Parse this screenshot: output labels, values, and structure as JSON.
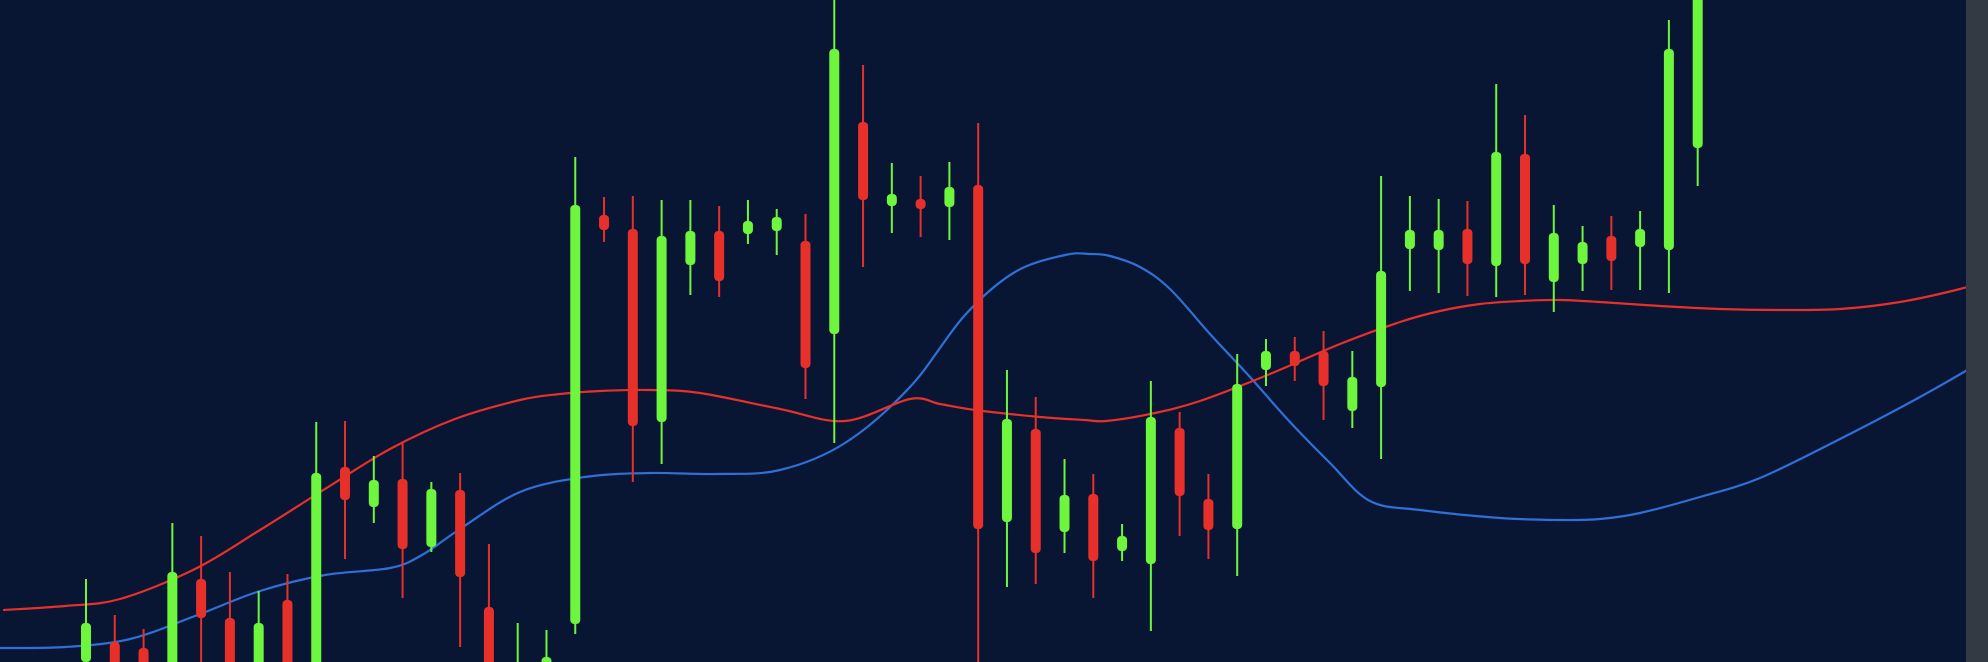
{
  "chart_data": {
    "type": "candlestick",
    "title": "",
    "xlabel": "",
    "ylabel": "",
    "ylim": [
      0,
      662
    ],
    "grid": false,
    "legend": "none",
    "colors": {
      "background": "#081634",
      "up": "#6ef53d",
      "down": "#e8302a",
      "ma_fast": "#2f6fd6",
      "ma_slow": "#e8302a",
      "edge": "#333a43"
    },
    "candles": [
      {
        "dir": "up",
        "open": 39,
        "close": 0,
        "high": 83,
        "low": -10
      },
      {
        "dir": "down",
        "open": 20,
        "close": -10,
        "high": 47,
        "low": -10
      },
      {
        "dir": "down",
        "open": 14,
        "close": -10,
        "high": 33,
        "low": -10
      },
      {
        "dir": "up",
        "open": -10,
        "close": 90,
        "high": 139,
        "low": -10
      },
      {
        "dir": "down",
        "open": 83,
        "close": 44,
        "high": 126,
        "low": -10
      },
      {
        "dir": "down",
        "open": 44,
        "close": -10,
        "high": 90,
        "low": -10
      },
      {
        "dir": "up",
        "open": -10,
        "close": 39,
        "high": 71,
        "low": -10
      },
      {
        "dir": "down",
        "open": 62,
        "close": -10,
        "high": 88,
        "low": -10
      },
      {
        "dir": "up",
        "open": -10,
        "close": 189,
        "high": 240,
        "low": -10
      },
      {
        "dir": "down",
        "open": 195,
        "close": 162,
        "high": 241,
        "low": 103
      },
      {
        "dir": "up",
        "open": 155,
        "close": 182,
        "high": 206,
        "low": 139
      },
      {
        "dir": "down",
        "open": 183,
        "close": 113,
        "high": 220,
        "low": 64
      },
      {
        "dir": "up",
        "open": 115,
        "close": 173,
        "high": 180,
        "low": 110
      },
      {
        "dir": "down",
        "open": 172,
        "close": 85,
        "high": 189,
        "low": 15
      },
      {
        "dir": "down",
        "open": 55,
        "close": -10,
        "high": 118,
        "low": -10
      },
      {
        "dir": "up",
        "open": -10,
        "close": 0,
        "high": 39,
        "low": -10
      },
      {
        "dir": "up",
        "open": -10,
        "close": 5,
        "high": 32,
        "low": -10
      },
      {
        "dir": "up",
        "open": 38,
        "close": 457,
        "high": 505,
        "low": 28
      },
      {
        "dir": "down",
        "open": 447,
        "close": 432,
        "high": 465,
        "low": 420
      },
      {
        "dir": "down",
        "open": 433,
        "close": 236,
        "high": 466,
        "low": 180
      },
      {
        "dir": "up",
        "open": 240,
        "close": 426,
        "high": 462,
        "low": 198
      },
      {
        "dir": "up",
        "open": 397,
        "close": 431,
        "high": 462,
        "low": 367
      },
      {
        "dir": "down",
        "open": 431,
        "close": 381,
        "high": 456,
        "low": 365
      },
      {
        "dir": "up",
        "open": 428,
        "close": 441,
        "high": 462,
        "low": 418
      },
      {
        "dir": "up",
        "open": 431,
        "close": 445,
        "high": 453,
        "low": 407
      },
      {
        "dir": "down",
        "open": 421,
        "close": 294,
        "high": 448,
        "low": 263
      },
      {
        "dir": "up",
        "open": 328,
        "close": 613,
        "high": 672,
        "low": 219
      },
      {
        "dir": "down",
        "open": 540,
        "close": 462,
        "high": 597,
        "low": 395
      },
      {
        "dir": "up",
        "open": 468,
        "close": 456,
        "high": 499,
        "low": 429
      },
      {
        "dir": "down",
        "open": 463,
        "close": 453,
        "high": 486,
        "low": 425
      },
      {
        "dir": "up",
        "open": 455,
        "close": 475,
        "high": 500,
        "low": 422
      },
      {
        "dir": "down",
        "open": 477,
        "close": 133,
        "high": 539,
        "low": 0
      },
      {
        "dir": "up",
        "open": 140,
        "close": 243,
        "high": 292,
        "low": 75
      },
      {
        "dir": "down",
        "open": 233,
        "close": 109,
        "high": 265,
        "low": 78
      },
      {
        "dir": "up",
        "open": 130,
        "close": 167,
        "high": 203,
        "low": 109
      },
      {
        "dir": "down",
        "open": 168,
        "close": 101,
        "high": 188,
        "low": 64
      },
      {
        "dir": "up",
        "open": 111,
        "close": 126,
        "high": 138,
        "low": 101
      },
      {
        "dir": "up",
        "open": 98,
        "close": 245,
        "high": 281,
        "low": 31
      },
      {
        "dir": "down",
        "open": 234,
        "close": 166,
        "high": 250,
        "low": 126
      },
      {
        "dir": "down",
        "open": 163,
        "close": 132,
        "high": 188,
        "low": 103
      },
      {
        "dir": "up",
        "open": 133,
        "close": 278,
        "high": 308,
        "low": 86
      },
      {
        "dir": "up",
        "open": 292,
        "close": 311,
        "high": 323,
        "low": 276
      },
      {
        "dir": "down",
        "open": 311,
        "close": 296,
        "high": 325,
        "low": 281
      },
      {
        "dir": "down",
        "open": 311,
        "close": 276,
        "high": 331,
        "low": 242
      },
      {
        "dir": "up",
        "open": 251,
        "close": 285,
        "high": 311,
        "low": 234
      },
      {
        "dir": "up",
        "open": 391,
        "close": 275,
        "high": 486,
        "low": 203
      },
      {
        "dir": "up",
        "open": 413,
        "close": 432,
        "high": 466,
        "low": 371
      },
      {
        "dir": "up",
        "open": 412,
        "close": 432,
        "high": 463,
        "low": 369
      },
      {
        "dir": "down",
        "open": 433,
        "close": 398,
        "high": 461,
        "low": 366
      },
      {
        "dir": "up",
        "open": 396,
        "close": 510,
        "high": 578,
        "low": 365
      },
      {
        "dir": "down",
        "open": 508,
        "close": 398,
        "high": 547,
        "low": 367
      },
      {
        "dir": "up",
        "open": 380,
        "close": 429,
        "high": 457,
        "low": 350
      },
      {
        "dir": "up",
        "open": 398,
        "close": 420,
        "high": 436,
        "low": 371
      },
      {
        "dir": "down",
        "open": 426,
        "close": 401,
        "high": 446,
        "low": 372
      },
      {
        "dir": "up",
        "open": 415,
        "close": 433,
        "high": 451,
        "low": 372
      },
      {
        "dir": "up",
        "open": 412,
        "close": 613,
        "high": 642,
        "low": 369
      },
      {
        "dir": "up",
        "open": 514,
        "close": 672,
        "high": 682,
        "low": 476
      }
    ],
    "series": [
      {
        "values": [
          [
            0,
            14
          ],
          [
            65,
            15
          ],
          [
            130,
            23
          ],
          [
            195,
            46
          ],
          [
            260,
            71
          ],
          [
            325,
            87
          ],
          [
            390,
            94
          ],
          [
            422,
            107
          ],
          [
            460,
            133
          ],
          [
            520,
            170
          ],
          [
            585,
            185
          ],
          [
            650,
            189
          ],
          [
            715,
            188
          ],
          [
            780,
            192
          ],
          [
            845,
            219
          ],
          [
            910,
            275
          ],
          [
            965,
            347
          ],
          [
            1015,
            390
          ],
          [
            1065,
            407
          ],
          [
            1090,
            408
          ],
          [
            1110,
            406
          ],
          [
            1140,
            395
          ],
          [
            1170,
            373
          ],
          [
            1210,
            328
          ],
          [
            1250,
            285
          ],
          [
            1290,
            240
          ],
          [
            1330,
            199
          ],
          [
            1370,
            161
          ],
          [
            1420,
            152
          ],
          [
            1500,
            144
          ],
          [
            1560,
            142
          ],
          [
            1600,
            143
          ],
          [
            1640,
            149
          ],
          [
            1700,
            165
          ],
          [
            1760,
            184
          ],
          [
            1840,
            223
          ],
          [
            1920,
            265
          ],
          [
            1988,
            304
          ]
        ]
      },
      {
        "values": [
          [
            4,
            52
          ],
          [
            65,
            56
          ],
          [
            120,
            63
          ],
          [
            195,
            93
          ],
          [
            260,
            132
          ],
          [
            325,
            173
          ],
          [
            390,
            213
          ],
          [
            455,
            243
          ],
          [
            520,
            262
          ],
          [
            560,
            268
          ],
          [
            600,
            271
          ],
          [
            650,
            272
          ],
          [
            700,
            269
          ],
          [
            780,
            253
          ],
          [
            845,
            241
          ],
          [
            910,
            263
          ],
          [
            940,
            258
          ],
          [
            975,
            252
          ],
          [
            1040,
            245
          ],
          [
            1085,
            242
          ],
          [
            1106,
            241
          ],
          [
            1150,
            248
          ],
          [
            1200,
            261
          ],
          [
            1270,
            288
          ],
          [
            1340,
            318
          ],
          [
            1400,
            340
          ],
          [
            1440,
            351
          ],
          [
            1480,
            358
          ],
          [
            1520,
            361
          ],
          [
            1560,
            362
          ],
          [
            1600,
            360
          ],
          [
            1660,
            356
          ],
          [
            1720,
            353
          ],
          [
            1780,
            352
          ],
          [
            1840,
            353
          ],
          [
            1900,
            360
          ],
          [
            1960,
            373
          ],
          [
            1988,
            382
          ]
        ]
      }
    ]
  }
}
